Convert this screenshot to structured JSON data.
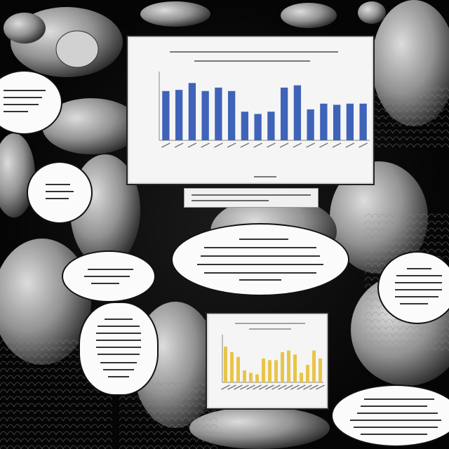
{
  "chart_data": [
    {
      "type": "bar",
      "title": "",
      "xlabel": "",
      "ylabel": "",
      "ylim": [
        0,
        60
      ],
      "categories": [
        "",
        "",
        "",
        "",
        "",
        "",
        "",
        "",
        "",
        "",
        "",
        "",
        "",
        "",
        "",
        ""
      ],
      "values": [
        43,
        44,
        50,
        43,
        46,
        43,
        25,
        23,
        25,
        46,
        48,
        27,
        32,
        31,
        32,
        32
      ],
      "colors": {
        "bar": "#3f63b8",
        "axis": "#888888",
        "grid": "#cccccc"
      }
    },
    {
      "type": "bar",
      "title": "",
      "xlabel": "",
      "ylabel": "",
      "ylim": [
        0,
        60
      ],
      "categories": [
        "",
        "",
        "",
        "",
        "",
        "",
        "",
        "",
        "",
        "",
        "",
        "",
        "",
        "",
        "",
        ""
      ],
      "values": [
        45,
        38,
        32,
        15,
        12,
        10,
        30,
        28,
        28,
        38,
        40,
        35,
        12,
        22,
        40,
        30
      ],
      "colors": {
        "bar": "#e8c547",
        "axis": "#888888",
        "grid": "#cccccc"
      }
    }
  ]
}
